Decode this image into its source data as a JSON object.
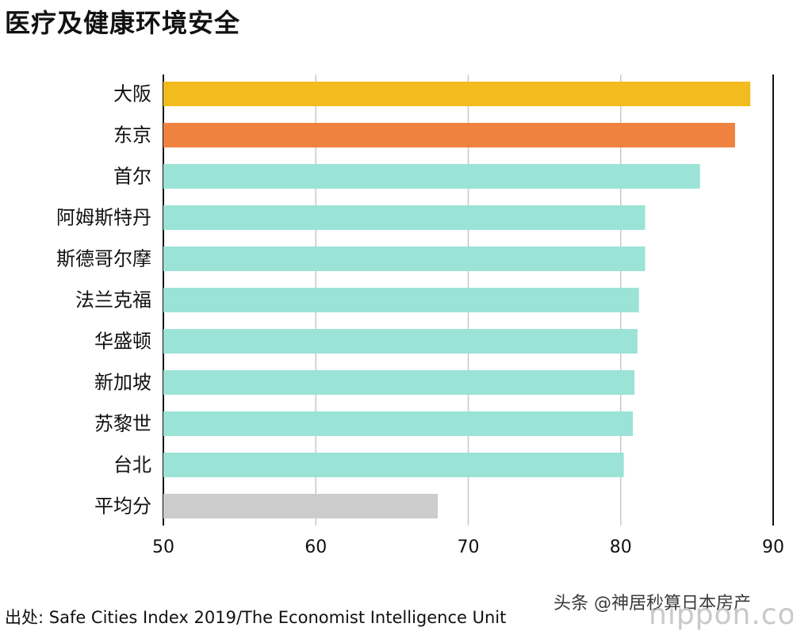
{
  "title": "医疗及健康环境安全",
  "source": "出处: Safe Cities Index 2019/The Economist Intelligence Unit",
  "watermark": "头条 @神居秒算日本房产",
  "watermark_brand": "nippon.com",
  "chart_data": {
    "type": "bar",
    "orientation": "horizontal",
    "categories": [
      "大阪",
      "东京",
      "首尔",
      "阿姆斯特丹",
      "斯德哥尔摩",
      "法兰克福",
      "华盛顿",
      "新加坡",
      "苏黎世",
      "台北",
      "平均分"
    ],
    "values": [
      88.5,
      87.5,
      85.2,
      81.6,
      81.6,
      81.2,
      81.1,
      80.9,
      80.8,
      80.2,
      68.0
    ],
    "colors": [
      "#F2BC1F",
      "#F08240",
      "#9AE3D6",
      "#9AE3D6",
      "#9AE3D6",
      "#9AE3D6",
      "#9AE3D6",
      "#9AE3D6",
      "#9AE3D6",
      "#9AE3D6",
      "#CCCCCC"
    ],
    "xlim": [
      50,
      90
    ],
    "xticks": [
      50,
      60,
      70,
      80,
      90
    ],
    "grid": true,
    "legend": "none"
  }
}
